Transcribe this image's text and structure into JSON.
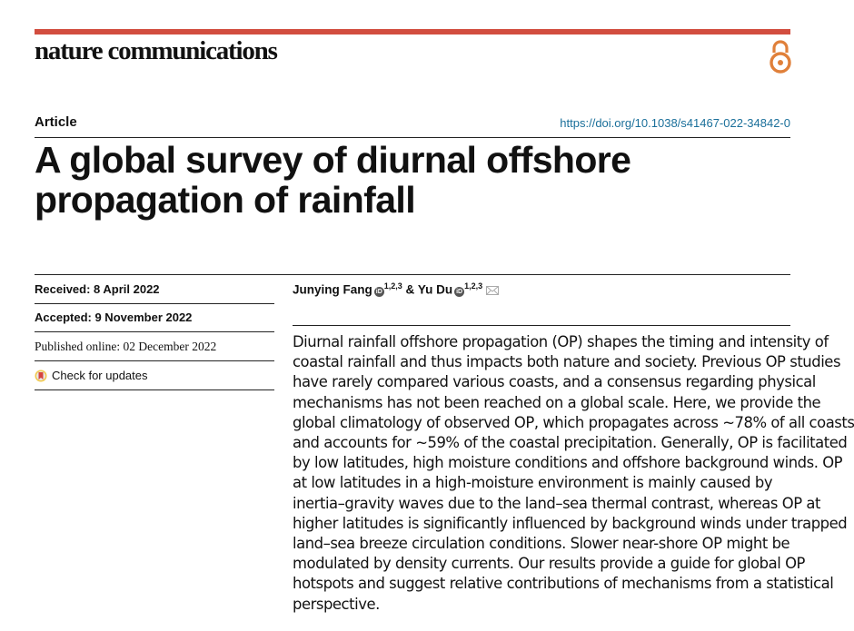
{
  "journal": {
    "name": "nature communications",
    "open_access_icon": "open-access-icon",
    "brand_color": "#d24d3f",
    "oa_color": "#e0803a"
  },
  "article_type": "Article",
  "doi": "https://doi.org/10.1038/s41467-022-34842-0",
  "title": [
    "A global survey of diurnal offshore",
    "propagation of rainfall"
  ],
  "dates": {
    "received": "Received: 8 April 2022",
    "accepted": "Accepted: 9 November 2022",
    "published": "Published online: 02 December 2022"
  },
  "check_updates": "Check for updates",
  "authors": [
    {
      "name": "Junying Fang",
      "aff": "1,2,3"
    },
    {
      "name": "Yu Du",
      "aff": "1,2,3"
    }
  ],
  "author_sep": "&",
  "abstract_lines": [
    "Diurnal rainfall offshore propagation (OP) shapes the timing and intensity of",
    "coastal rainfall and thus impacts both nature and society. Previous OP studies",
    "have rarely compared various coasts, and a consensus regarding physical",
    "mechanisms has not been reached on a global scale. Here, we provide the",
    "global climatology of observed OP, which propagates across ~78% of all coasts",
    "and accounts for ~59% of the coastal precipitation. Generally, OP is facilitated",
    "by low latitudes, high moisture conditions and offshore background winds. OP",
    "at low latitudes in a high-moisture environment is mainly caused by",
    "inertia–gravity waves due to the land–sea thermal contrast, whereas OP at",
    "higher latitudes is significantly influenced by background winds under trapped",
    "land–sea breeze circulation conditions. Slower near-shore OP might be",
    "modulated by density currents. Our results provide a guide for global OP",
    "hotspots and suggest relative contributions of mechanisms from a statistical",
    "perspective."
  ]
}
